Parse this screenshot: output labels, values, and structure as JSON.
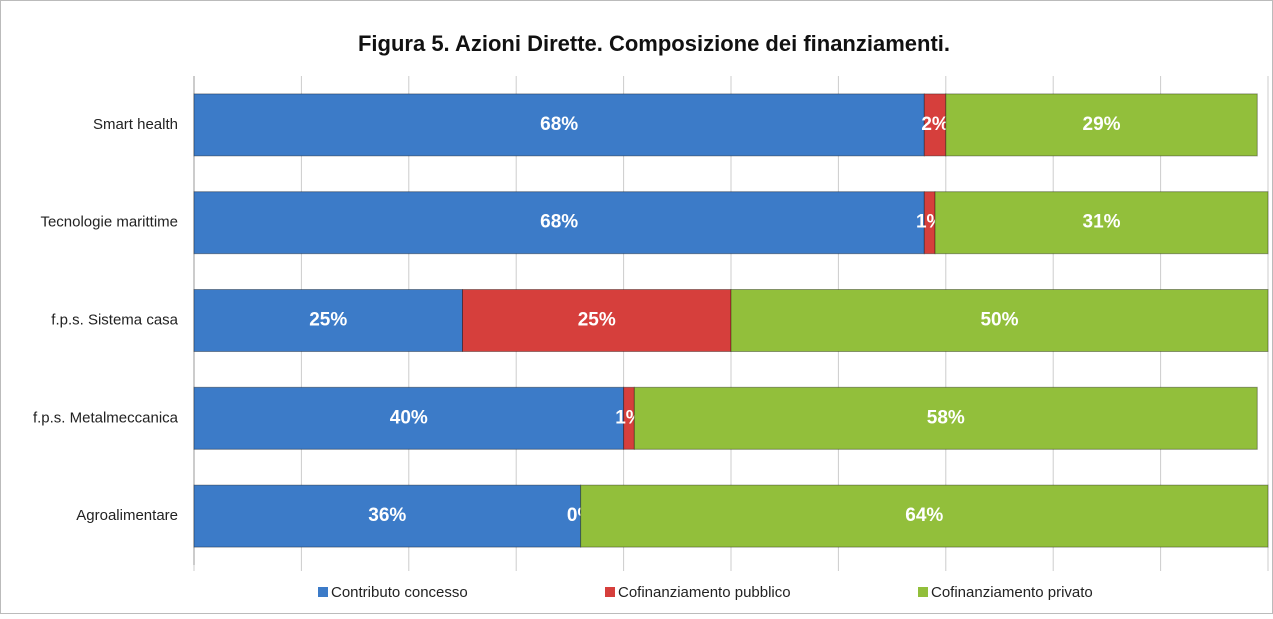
{
  "chart_data": {
    "type": "stacked-bar-horizontal",
    "title": "Figura 5. Azioni Dirette. Composizione dei finanziamenti.",
    "categories": [
      "Smart health",
      "Tecnologie marittime",
      "f.p.s. Sistema casa",
      "f.p.s. Metalmeccanica",
      "Agroalimentare"
    ],
    "series": [
      {
        "name": "Contributo concesso",
        "color": "#3c7bc8",
        "values": [
          68,
          68,
          25,
          40,
          36
        ],
        "value_labels": [
          "68%",
          "68%",
          "25%",
          "40%",
          "36%"
        ]
      },
      {
        "name": "Cofinanziamento pubblico",
        "color": "#d63f3c",
        "values": [
          2,
          1,
          25,
          1,
          0
        ],
        "value_labels": [
          "2%",
          "1%",
          "25%",
          "1%",
          "0%"
        ]
      },
      {
        "name": "Cofinanziamento privato",
        "color": "#92bf3b",
        "values": [
          29,
          31,
          50,
          58,
          64
        ],
        "value_labels": [
          "29%",
          "31%",
          "50%",
          "58%",
          "64%"
        ]
      }
    ],
    "xlim": [
      0,
      100
    ],
    "xticks": [
      0,
      10,
      20,
      30,
      40,
      50,
      60,
      70,
      80,
      90,
      100
    ],
    "grid": true,
    "legend": "bottom"
  }
}
